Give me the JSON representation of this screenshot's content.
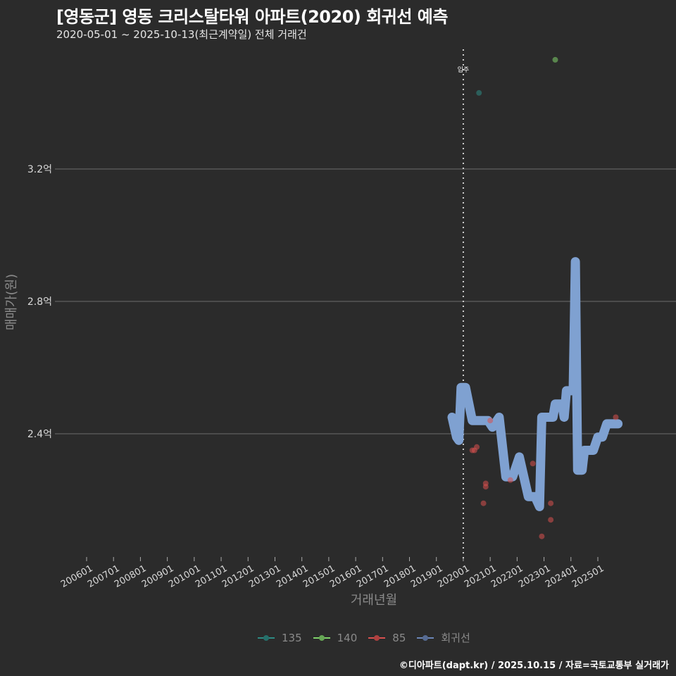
{
  "header": {
    "title": "[영동군] 영동 크리스탈타워 아파트(2020) 회귀선 예측",
    "subtitle": "2020-05-01 ~ 2025-10-13(최근계약일) 전체 거래건"
  },
  "axes": {
    "ylabel": "매매가(원)",
    "xlabel": "거래년월",
    "yticks": [
      {
        "label": "3.2억",
        "value": 3.2
      },
      {
        "label": "2.8억",
        "value": 2.8
      },
      {
        "label": "2.4억",
        "value": 2.4
      }
    ],
    "xticks": [
      "200601",
      "200701",
      "200801",
      "200901",
      "201001",
      "201101",
      "201201",
      "201301",
      "201401",
      "201501",
      "201601",
      "201701",
      "201801",
      "201901",
      "202001",
      "202101",
      "202201",
      "202301",
      "202401",
      "202501"
    ]
  },
  "annotation": {
    "label": "입주",
    "x": "202001"
  },
  "legend": [
    {
      "label": "135",
      "color": "#2e8b84"
    },
    {
      "label": "140",
      "color": "#7fd16a"
    },
    {
      "label": "85",
      "color": "#d9504f"
    },
    {
      "label": "회귀선",
      "color": "#6b86b8"
    }
  ],
  "caption": "©디아파트(dapt.kr) / 2025.10.15 / 자료=국토교통부 실거래가",
  "colors": {
    "background": "#2b2b2b",
    "grid": "#6e6e6e",
    "regression": "#7fa1d1",
    "s135": "#2e8b84",
    "s140": "#7fd16a",
    "s85": "#d9504f"
  },
  "chart_data": {
    "type": "scatter",
    "title": "[영동군] 영동 크리스탈타워 아파트(2020) 회귀선 예측",
    "subtitle": "2020-05-01 ~ 2025-10-13(최근계약일) 전체 거래건",
    "xlabel": "거래년월",
    "ylabel": "매매가(원)",
    "x_range": [
      "200601",
      "202510"
    ],
    "ylim": [
      2.0,
      3.6
    ],
    "y_unit": "억",
    "grid": true,
    "legend_position": "bottom",
    "series": [
      {
        "name": "135",
        "type": "scatter",
        "points": [
          {
            "x": "2020-08",
            "y": 3.43
          }
        ]
      },
      {
        "name": "140",
        "type": "scatter",
        "points": [
          {
            "x": "2023-06",
            "y": 3.53
          }
        ]
      },
      {
        "name": "85",
        "type": "scatter",
        "points": [
          {
            "x": "2020-05",
            "y": 2.35
          },
          {
            "x": "2020-06",
            "y": 2.35
          },
          {
            "x": "2020-07",
            "y": 2.36
          },
          {
            "x": "2020-10",
            "y": 2.19
          },
          {
            "x": "2020-11",
            "y": 2.25
          },
          {
            "x": "2020-11",
            "y": 2.24
          },
          {
            "x": "2021-01",
            "y": 2.44
          },
          {
            "x": "2021-10",
            "y": 2.26
          },
          {
            "x": "2022-08",
            "y": 2.31
          },
          {
            "x": "2022-12",
            "y": 2.09
          },
          {
            "x": "2023-04",
            "y": 2.19
          },
          {
            "x": "2023-04",
            "y": 2.14
          },
          {
            "x": "2025-09",
            "y": 2.45
          }
        ]
      },
      {
        "name": "회귀선",
        "type": "line",
        "points": [
          {
            "x": "2019-08",
            "y": 2.45
          },
          {
            "x": "2019-10",
            "y": 2.39
          },
          {
            "x": "2019-11",
            "y": 2.38
          },
          {
            "x": "2019-12",
            "y": 2.54
          },
          {
            "x": "2020-02",
            "y": 2.54
          },
          {
            "x": "2020-05",
            "y": 2.44
          },
          {
            "x": "2020-06",
            "y": 2.44
          },
          {
            "x": "2020-12",
            "y": 2.44
          },
          {
            "x": "2021-02",
            "y": 2.42
          },
          {
            "x": "2021-05",
            "y": 2.45
          },
          {
            "x": "2021-08",
            "y": 2.27
          },
          {
            "x": "2021-11",
            "y": 2.27
          },
          {
            "x": "2022-02",
            "y": 2.33
          },
          {
            "x": "2022-06",
            "y": 2.21
          },
          {
            "x": "2022-09",
            "y": 2.21
          },
          {
            "x": "2022-11",
            "y": 2.18
          },
          {
            "x": "2022-12",
            "y": 2.45
          },
          {
            "x": "2023-05",
            "y": 2.45
          },
          {
            "x": "2023-06",
            "y": 2.49
          },
          {
            "x": "2023-09",
            "y": 2.49
          },
          {
            "x": "2023-10",
            "y": 2.45
          },
          {
            "x": "2023-11",
            "y": 2.53
          },
          {
            "x": "2024-02",
            "y": 2.53
          },
          {
            "x": "2024-03",
            "y": 2.92
          },
          {
            "x": "2024-04",
            "y": 2.29
          },
          {
            "x": "2024-06",
            "y": 2.29
          },
          {
            "x": "2024-07",
            "y": 2.35
          },
          {
            "x": "2024-11",
            "y": 2.35
          },
          {
            "x": "2025-01",
            "y": 2.39
          },
          {
            "x": "2025-03",
            "y": 2.39
          },
          {
            "x": "2025-05",
            "y": 2.43
          },
          {
            "x": "2025-10",
            "y": 2.43
          }
        ]
      }
    ]
  }
}
